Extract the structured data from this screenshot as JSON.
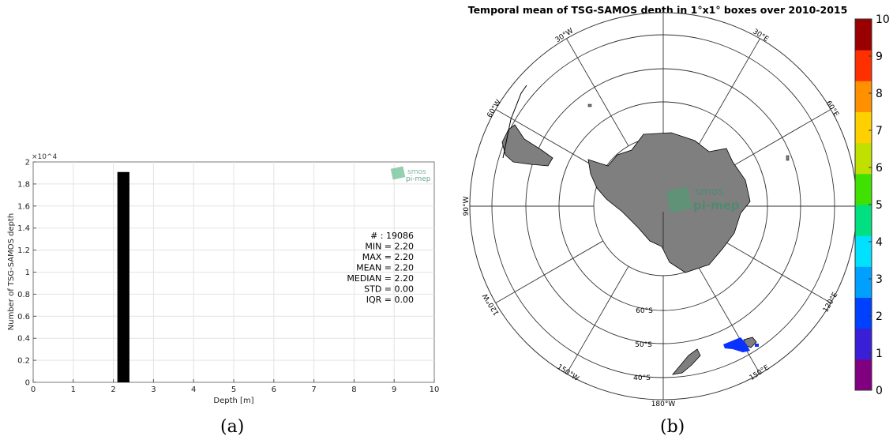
{
  "panel_a": {
    "caption": "(a)",
    "watermark": {
      "line1": "smos",
      "line2": "pi-mep"
    },
    "stats_lines": [
      "# : 19086",
      "MIN = 2.20",
      "MAX =  2.20",
      "MEAN = 2.20",
      "MEDIAN = 2.20",
      "STD = 0.00",
      "IQR = 0.00"
    ]
  },
  "panel_b": {
    "caption": "(b)",
    "watermark": {
      "line1": "smos",
      "line2": "pi-mep"
    }
  },
  "chart_data": [
    {
      "type": "bar",
      "title": "",
      "xlabel": "Depth [m]",
      "ylabel": "Number of TSG-SAMOS depth",
      "xlim": [
        0,
        10
      ],
      "ylim": [
        0,
        20000
      ],
      "xticks": [
        "0",
        "1",
        "2",
        "3",
        "4",
        "5",
        "6",
        "7",
        "8",
        "9",
        "10"
      ],
      "yticks": [
        "0",
        "0.2",
        "0.4",
        "0.6",
        "0.8",
        "1",
        "1.2",
        "1.4",
        "1.6",
        "1.8",
        "2"
      ],
      "y_exponent": "×10^4",
      "bins": [
        {
          "x0": 2.1,
          "x1": 2.4,
          "count": 19086
        }
      ],
      "bar_color": "#000000",
      "grid": true
    },
    {
      "type": "map",
      "title": "Temporal mean of TSG-SAMOS depth in 1°x1° boxes over 2010-2015",
      "projection": "south polar stereographic",
      "lat_labels": [
        "60°S",
        "50°S",
        "40°S"
      ],
      "lon_labels": [
        "30°W",
        "30°E",
        "60°W",
        "60°E",
        "90°W",
        "120°W",
        "120°E",
        "150°W",
        "150°E",
        "180°W"
      ],
      "colorbar": {
        "min": 0,
        "max": 10,
        "ticks": [
          "0",
          "1",
          "2",
          "3",
          "4",
          "5",
          "6",
          "7",
          "8",
          "9",
          "10"
        ],
        "colormap": [
          "#800080",
          "#3a1fd6",
          "#0040ff",
          "#00a0ff",
          "#00e0ff",
          "#00e080",
          "#40e000",
          "#c0e000",
          "#ffd000",
          "#ff9000",
          "#ff3000",
          "#9a0000"
        ]
      },
      "land_color": "#7f7f7f",
      "data_color": "#0a32ff"
    }
  ]
}
